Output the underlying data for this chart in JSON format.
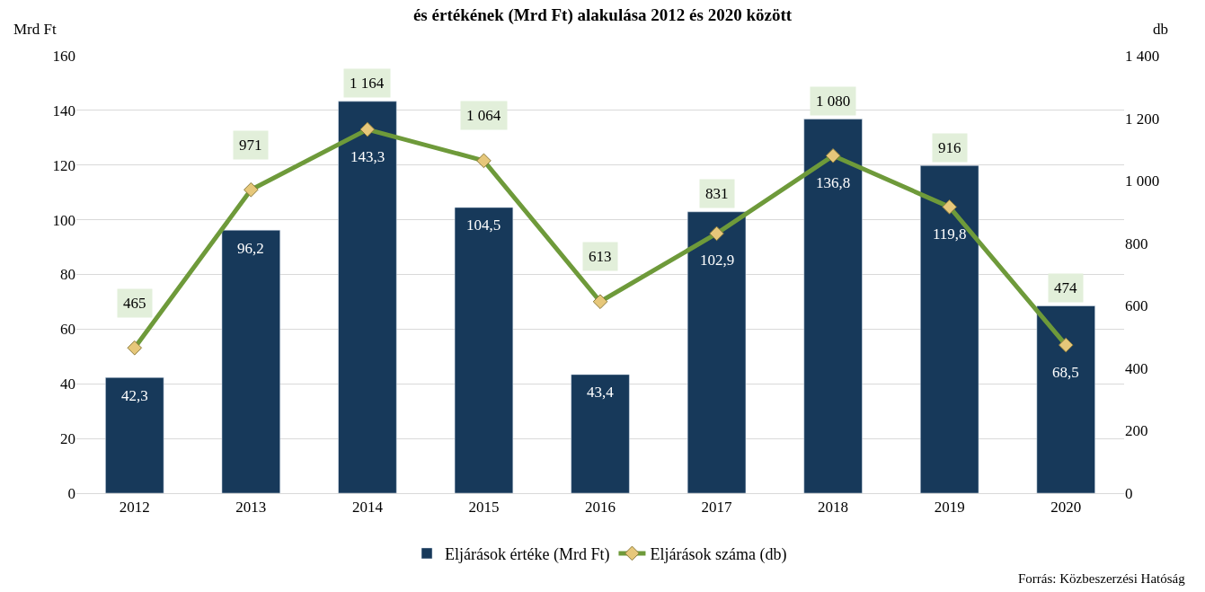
{
  "chart_data": {
    "type": "bar",
    "title": "és értékének (Mrd Ft) alakulása 2012 és 2020 között",
    "ylabel": "Mrd Ft",
    "y2label": "db",
    "categories": [
      "2012",
      "2013",
      "2014",
      "2015",
      "2016",
      "2017",
      "2018",
      "2019",
      "2020"
    ],
    "series": [
      {
        "name": "Eljárások értéke (Mrd Ft)",
        "color": "#17395a",
        "values": [
          42.3,
          96.2,
          143.3,
          104.5,
          43.4,
          102.9,
          136.8,
          119.8,
          68.5
        ],
        "value_labels": [
          "42,3",
          "96,2",
          "143,3",
          "104,5",
          "43,4",
          "102,9",
          "136,8",
          "119,8",
          "68,5"
        ]
      },
      {
        "name": "Eljárások száma (db)",
        "type": "line",
        "axis": "y2",
        "color": "#6e9a3a",
        "marker": "diamond",
        "values": [
          465,
          971,
          1164,
          1064,
          613,
          831,
          1080,
          916,
          474
        ],
        "value_labels": [
          "465",
          "971",
          "1 164",
          "1 064",
          "613",
          "831",
          "1 080",
          "916",
          "474"
        ]
      }
    ],
    "ylim": [
      0,
      160
    ],
    "yticks": [
      0,
      20,
      40,
      60,
      80,
      100,
      120,
      140,
      160
    ],
    "y2lim": [
      0,
      1400
    ],
    "y2ticks": [
      0,
      {
        "value": 200,
        "label": "200"
      },
      {
        "value": 400,
        "label": "400"
      },
      {
        "value": 600,
        "label": "600"
      },
      {
        "value": 800,
        "label": "800"
      },
      {
        "value": 1000,
        "label": "1 000"
      },
      {
        "value": 1200,
        "label": "1 200"
      },
      {
        "value": 1400,
        "label": "1 400"
      }
    ],
    "grid": "y",
    "legend": "bottom",
    "annotations": [
      "Forrás: Közbeszerzési Hatóság"
    ]
  }
}
